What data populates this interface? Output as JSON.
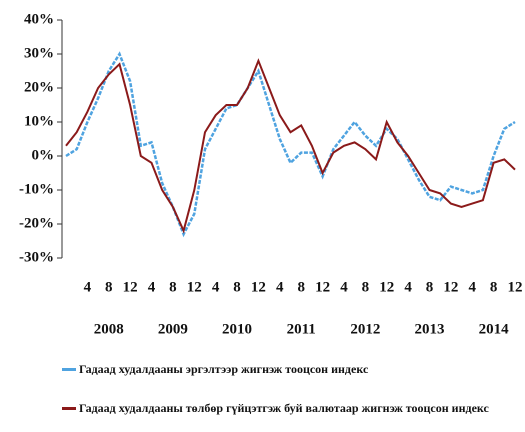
{
  "chart_data": {
    "type": "line",
    "categories": [
      null,
      null,
      "4",
      null,
      "8",
      null,
      "12",
      null,
      "4",
      null,
      "8",
      null,
      "12",
      null,
      "4",
      null,
      "8",
      null,
      "12",
      null,
      "4",
      null,
      "8",
      null,
      "12",
      null,
      "4",
      null,
      "8",
      null,
      "12",
      null,
      "4",
      null,
      "8",
      null,
      "12",
      null,
      "4",
      null,
      "8",
      null,
      "12"
    ],
    "year_labels": [
      "2008",
      "2009",
      "2010",
      "2011",
      "2012",
      "2013",
      "2014"
    ],
    "series": [
      {
        "name": "Гадаад худалдааны эргэлтээр жигнэж тооцсон индекс",
        "color": "#4fa3e0",
        "values": [
          0,
          2,
          10,
          17,
          25,
          30,
          22,
          3,
          4,
          -8,
          -15,
          -23,
          -17,
          2,
          8,
          14,
          15,
          20,
          25,
          15,
          5,
          -2,
          1,
          1,
          -6,
          2,
          6,
          10,
          6,
          3,
          8,
          5,
          -1,
          -7,
          -12,
          -13,
          -9,
          -10,
          -11,
          -10,
          0,
          8,
          10
        ]
      },
      {
        "name": "Гадаад худалдааны төлбөр гүйцэтгэж буй валютаар жигнэж тооцсон индекс",
        "color": "#8b1a1a",
        "values": [
          3,
          7,
          13,
          20,
          24,
          27,
          15,
          0,
          -2,
          -10,
          -15,
          -22,
          -10,
          7,
          12,
          15,
          15,
          20,
          28,
          20,
          12,
          7,
          9,
          3,
          -5,
          1,
          3,
          4,
          2,
          -1,
          10,
          4,
          0,
          -5,
          -10,
          -11,
          -14,
          -15,
          -14,
          -13,
          -2,
          -1,
          -4
        ]
      }
    ],
    "ylim": [
      -30,
      40
    ],
    "yticks": [
      {
        "value": -30,
        "label": "-30%"
      },
      {
        "value": -20,
        "label": "-20%"
      },
      {
        "value": -10,
        "label": "-10%"
      },
      {
        "value": 0,
        "label": "0%"
      },
      {
        "value": 10,
        "label": "10%"
      },
      {
        "value": 20,
        "label": "20%"
      },
      {
        "value": 30,
        "label": "30%"
      },
      {
        "value": 40,
        "label": "40%"
      }
    ],
    "grid": false
  }
}
